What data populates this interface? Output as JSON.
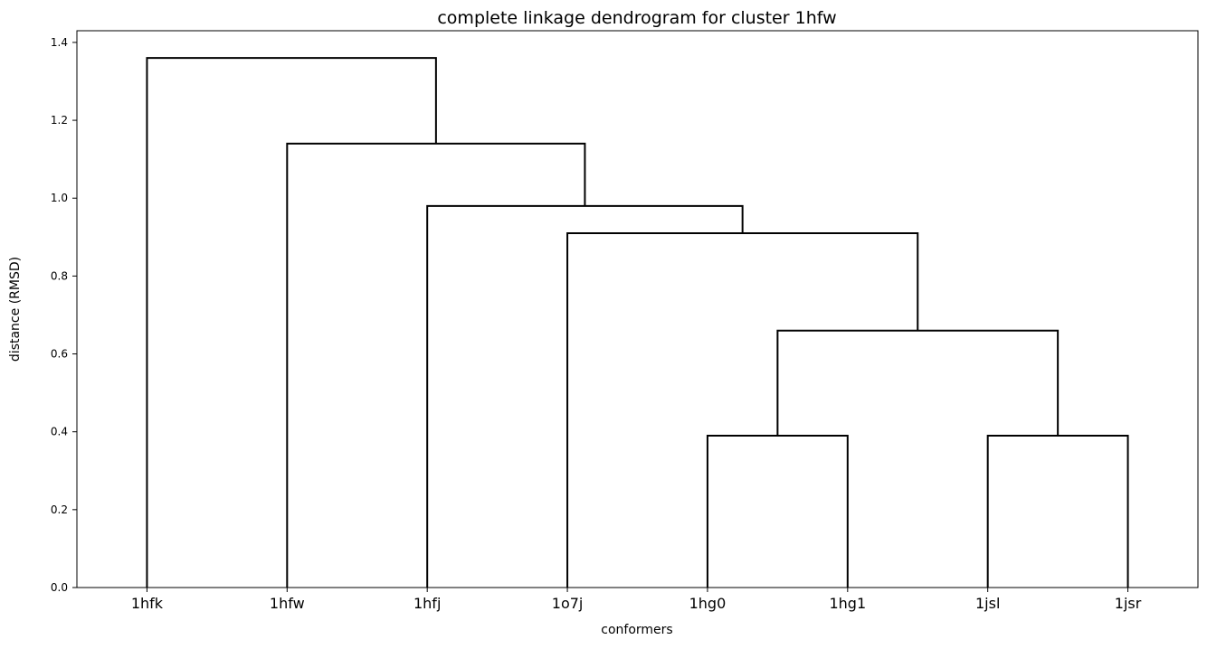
{
  "chart_data": {
    "type": "dendrogram",
    "title": "complete linkage dendrogram for cluster 1hfw",
    "xlabel": "conformers",
    "ylabel": "distance (RMSD)",
    "ylim": [
      0,
      1.43
    ],
    "yticks": [
      0.0,
      0.2,
      0.4,
      0.6,
      0.8,
      1.0,
      1.2,
      1.4
    ],
    "ytick_labels": [
      "0.0",
      "0.2",
      "0.4",
      "0.6",
      "0.8",
      "1.0",
      "1.2",
      "1.4"
    ],
    "leaves": [
      "1hfk",
      "1hfw",
      "1hfj",
      "1o7j",
      "1hg0",
      "1hg1",
      "1jsl",
      "1jsr"
    ],
    "merges": [
      {
        "left": "1hg0",
        "right": "1hg1",
        "height": 0.39
      },
      {
        "left": "1jsl",
        "right": "1jsr",
        "height": 0.39
      },
      {
        "left": "1hg0+1hg1",
        "right": "1jsl+1jsr",
        "height": 0.66
      },
      {
        "left": "1o7j",
        "right": "1hg0+1hg1+1jsl+1jsr",
        "height": 0.91
      },
      {
        "left": "1hfj",
        "right": "1o7j+1hg0+1hg1+1jsl+1jsr",
        "height": 0.98
      },
      {
        "left": "1hfw",
        "right": "1hfj+1o7j+1hg0+1hg1+1jsl+1jsr",
        "height": 1.14
      },
      {
        "left": "1hfk",
        "right": "1hfw+1hfj+1o7j+1hg0+1hg1+1jsl+1jsr",
        "height": 1.36
      }
    ],
    "grid": false,
    "legend": "none",
    "line_color": "#000000"
  }
}
